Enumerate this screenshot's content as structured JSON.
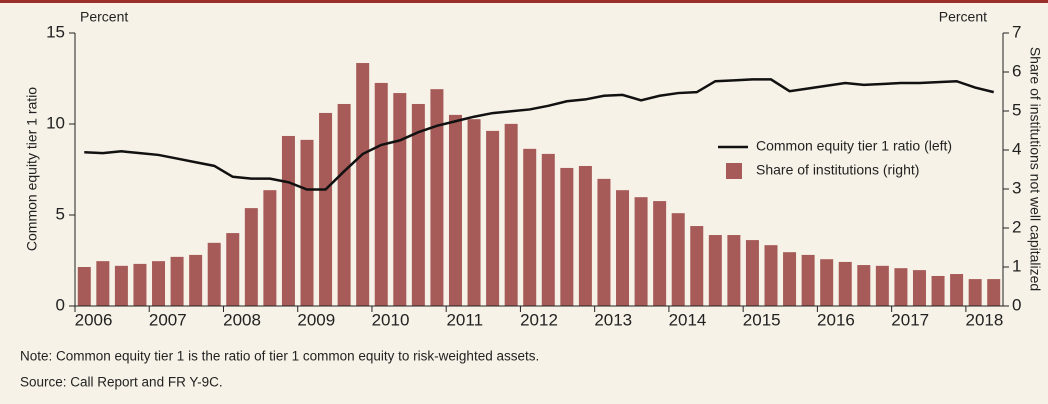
{
  "chart_data": {
    "type": "bar",
    "y_title": "Percent",
    "y2_title": "Percent",
    "ylabel": "Common equity tier 1 ratio",
    "y2label": "Share of institutions not well capitalized",
    "categories": [
      "2006",
      null,
      null,
      null,
      "2007",
      null,
      null,
      null,
      "2008",
      null,
      null,
      null,
      "2009",
      null,
      null,
      null,
      "2010",
      null,
      null,
      null,
      "2011",
      null,
      null,
      null,
      "2012",
      null,
      null,
      null,
      "2013",
      null,
      null,
      null,
      "2014",
      null,
      null,
      null,
      "2015",
      null,
      null,
      null,
      "2016",
      null,
      null,
      null,
      "2017",
      null,
      null,
      null,
      "2018",
      null
    ],
    "series": [
      {
        "name": "Common equity tier 1 ratio (left)",
        "type": "line",
        "axis": "y",
        "color": "#111111",
        "values": [
          8.45,
          8.4,
          8.5,
          8.4,
          8.3,
          8.1,
          7.9,
          7.7,
          7.1,
          7.0,
          7.0,
          6.8,
          6.4,
          6.4,
          7.4,
          8.35,
          8.85,
          9.1,
          9.55,
          9.9,
          10.15,
          10.4,
          10.6,
          10.7,
          10.8,
          11.0,
          11.25,
          11.35,
          11.55,
          11.6,
          11.3,
          11.55,
          11.7,
          11.75,
          12.35,
          12.4,
          12.45,
          12.45,
          11.8,
          11.95,
          12.1,
          12.25,
          12.15,
          12.2,
          12.25,
          12.25,
          12.3,
          12.35,
          12.0,
          11.75
        ]
      },
      {
        "name": "Share of institutions (right)",
        "type": "bar",
        "axis": "y2",
        "color": "#a65b58",
        "values": [
          1.0,
          1.15,
          1.03,
          1.08,
          1.15,
          1.26,
          1.31,
          1.62,
          1.87,
          2.51,
          2.97,
          4.36,
          4.26,
          4.95,
          5.18,
          6.23,
          5.72,
          5.46,
          5.18,
          5.56,
          4.9,
          4.79,
          4.49,
          4.67,
          4.03,
          3.9,
          3.54,
          3.59,
          3.26,
          2.97,
          2.79,
          2.69,
          2.38,
          2.05,
          1.82,
          1.82,
          1.69,
          1.56,
          1.38,
          1.31,
          1.2,
          1.13,
          1.05,
          1.03,
          0.97,
          0.92,
          0.77,
          0.82,
          0.69,
          0.69
        ]
      }
    ],
    "ylim": [
      0,
      15
    ],
    "yticks": [
      0,
      5,
      10,
      15
    ],
    "y2lim": [
      0,
      7
    ],
    "y2ticks": [
      0,
      1,
      2,
      3,
      4,
      5,
      6,
      7
    ],
    "notes": [
      "Note: Common equity tier 1 is the ratio of tier 1 common equity to risk-weighted assets.",
      "Source: Call Report and FR Y-9C."
    ]
  }
}
